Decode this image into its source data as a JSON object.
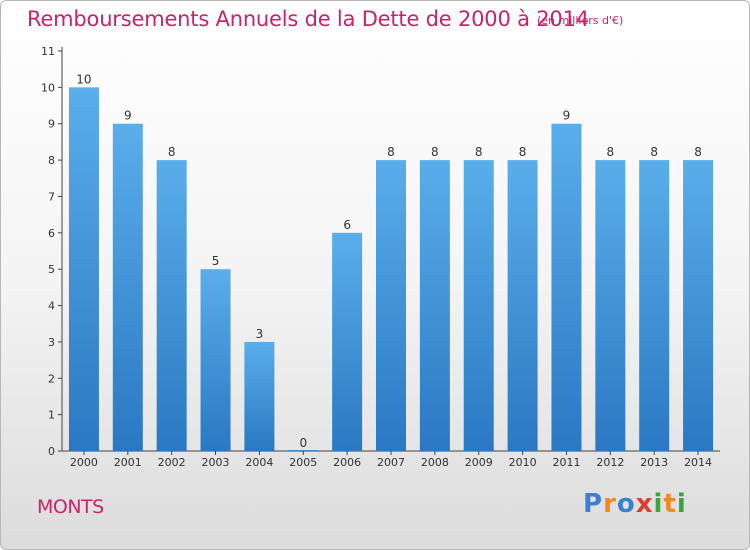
{
  "title": "Remboursements Annuels de la Dette de 2000 à 2014",
  "unit_note": "(en milliers d'€)",
  "commune": "MONTS",
  "logo": {
    "letters": [
      "P",
      "r",
      "o",
      "x",
      "i",
      "t",
      "i"
    ],
    "colors": [
      "#3a7fd1",
      "#f08a1c",
      "#3a7fd1",
      "#e23b2f",
      "#3aa53a",
      "#f08a1c",
      "#3aa53a"
    ]
  },
  "chart_data": {
    "type": "bar",
    "categories": [
      "2000",
      "2001",
      "2002",
      "2003",
      "2004",
      "2005",
      "2006",
      "2007",
      "2008",
      "2009",
      "2010",
      "2011",
      "2012",
      "2013",
      "2014"
    ],
    "values": [
      10,
      9,
      8,
      5,
      3,
      0,
      6,
      8,
      8,
      8,
      8,
      9,
      8,
      8,
      8
    ],
    "ylim": [
      0,
      11
    ],
    "yticks": [
      "0",
      "1",
      "2",
      "3",
      "4",
      "5",
      "6",
      "7",
      "8",
      "9",
      "10",
      "11"
    ],
    "grid": false,
    "bar_color": "#3b8fd9"
  }
}
